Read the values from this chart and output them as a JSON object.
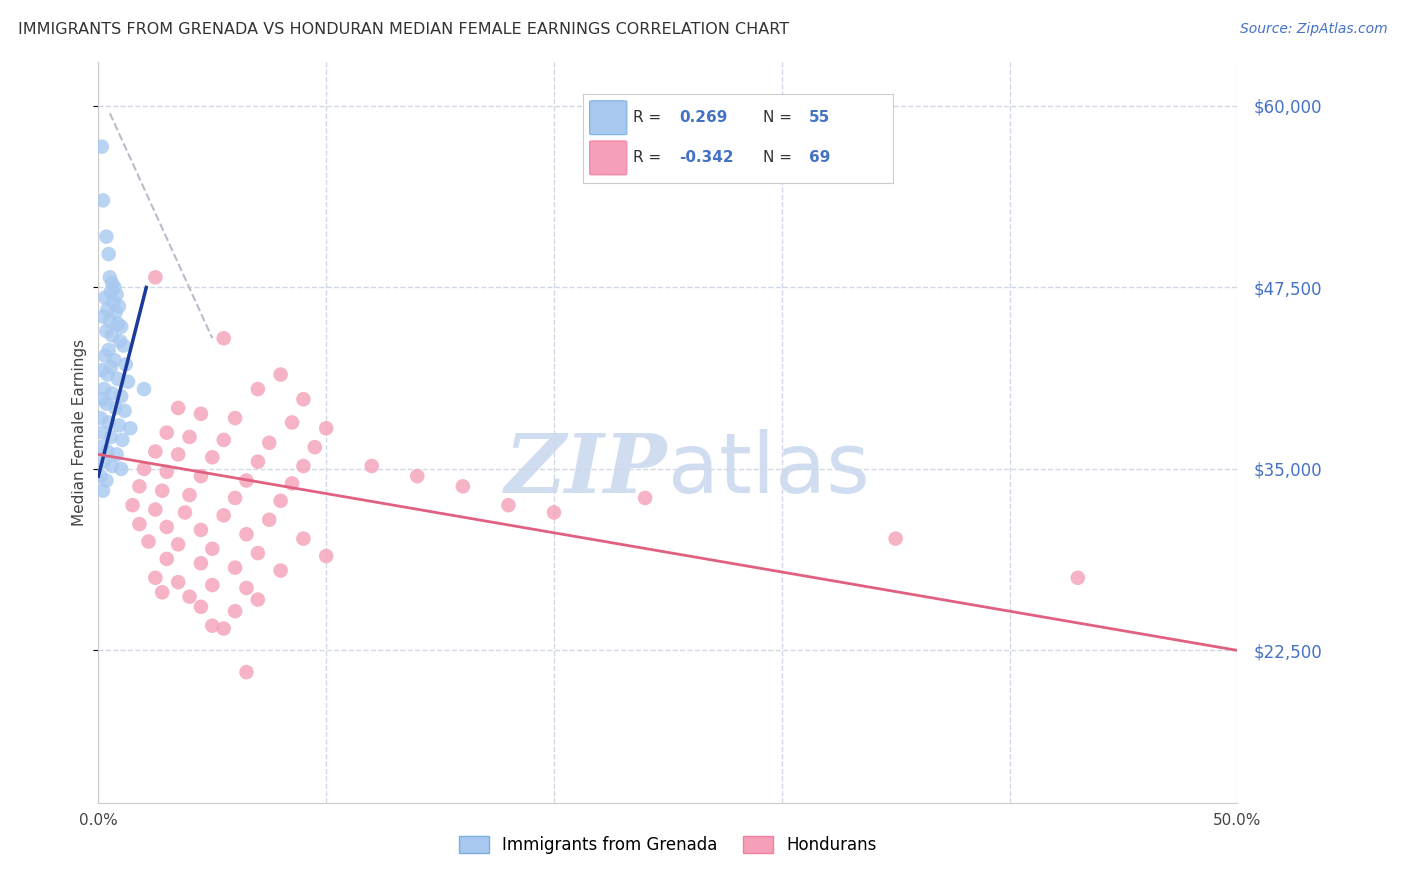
{
  "title": "IMMIGRANTS FROM GRENADA VS HONDURAN MEDIAN FEMALE EARNINGS CORRELATION CHART",
  "source": "Source: ZipAtlas.com",
  "ylabel": "Median Female Earnings",
  "y_ticks": [
    22500,
    35000,
    47500,
    60000
  ],
  "y_tick_labels": [
    "$22,500",
    "$35,000",
    "$47,500",
    "$60,000"
  ],
  "xmin": 0.0,
  "xmax": 50.0,
  "ymin": 12000,
  "ymax": 63000,
  "blue_color": "#a8c8f0",
  "blue_edge_color": "#7ab0e0",
  "pink_color": "#f5a0b8",
  "pink_edge_color": "#f080a0",
  "blue_line_color": "#1a3a9c",
  "pink_line_color": "#e06080",
  "grid_color": "#d0d8e8",
  "background_color": "#ffffff",
  "watermark_color": "#d0ddf0",
  "blue_dots": [
    [
      0.15,
      57200
    ],
    [
      0.2,
      53500
    ],
    [
      0.35,
      51000
    ],
    [
      0.45,
      49800
    ],
    [
      0.5,
      48200
    ],
    [
      0.6,
      47800
    ],
    [
      0.7,
      47500
    ],
    [
      0.55,
      47200
    ],
    [
      0.8,
      47000
    ],
    [
      0.3,
      46800
    ],
    [
      0.65,
      46500
    ],
    [
      0.9,
      46200
    ],
    [
      0.4,
      46000
    ],
    [
      0.75,
      45800
    ],
    [
      0.2,
      45500
    ],
    [
      0.5,
      45200
    ],
    [
      0.85,
      45000
    ],
    [
      1.0,
      44800
    ],
    [
      0.35,
      44500
    ],
    [
      0.6,
      44200
    ],
    [
      0.95,
      43800
    ],
    [
      1.1,
      43500
    ],
    [
      0.45,
      43200
    ],
    [
      0.3,
      42800
    ],
    [
      0.7,
      42500
    ],
    [
      1.2,
      42200
    ],
    [
      0.55,
      42000
    ],
    [
      0.15,
      41800
    ],
    [
      0.4,
      41500
    ],
    [
      0.85,
      41200
    ],
    [
      1.3,
      41000
    ],
    [
      0.25,
      40500
    ],
    [
      0.6,
      40200
    ],
    [
      1.0,
      40000
    ],
    [
      0.2,
      39800
    ],
    [
      0.35,
      39500
    ],
    [
      0.75,
      39200
    ],
    [
      1.15,
      39000
    ],
    [
      0.1,
      38500
    ],
    [
      0.45,
      38200
    ],
    [
      0.9,
      38000
    ],
    [
      1.4,
      37800
    ],
    [
      0.2,
      37500
    ],
    [
      0.55,
      37200
    ],
    [
      1.05,
      37000
    ],
    [
      0.15,
      36500
    ],
    [
      0.4,
      36200
    ],
    [
      0.8,
      36000
    ],
    [
      0.25,
      35500
    ],
    [
      0.6,
      35200
    ],
    [
      1.0,
      35000
    ],
    [
      0.1,
      34500
    ],
    [
      0.35,
      34200
    ],
    [
      0.2,
      33500
    ],
    [
      2.0,
      40500
    ]
  ],
  "pink_dots": [
    [
      2.5,
      48200
    ],
    [
      5.5,
      44000
    ],
    [
      8.0,
      41500
    ],
    [
      7.0,
      40500
    ],
    [
      9.0,
      39800
    ],
    [
      3.5,
      39200
    ],
    [
      4.5,
      38800
    ],
    [
      6.0,
      38500
    ],
    [
      8.5,
      38200
    ],
    [
      10.0,
      37800
    ],
    [
      3.0,
      37500
    ],
    [
      4.0,
      37200
    ],
    [
      5.5,
      37000
    ],
    [
      7.5,
      36800
    ],
    [
      9.5,
      36500
    ],
    [
      2.5,
      36200
    ],
    [
      3.5,
      36000
    ],
    [
      5.0,
      35800
    ],
    [
      7.0,
      35500
    ],
    [
      9.0,
      35200
    ],
    [
      2.0,
      35000
    ],
    [
      3.0,
      34800
    ],
    [
      4.5,
      34500
    ],
    [
      6.5,
      34200
    ],
    [
      8.5,
      34000
    ],
    [
      1.8,
      33800
    ],
    [
      2.8,
      33500
    ],
    [
      4.0,
      33200
    ],
    [
      6.0,
      33000
    ],
    [
      8.0,
      32800
    ],
    [
      1.5,
      32500
    ],
    [
      2.5,
      32200
    ],
    [
      3.8,
      32000
    ],
    [
      5.5,
      31800
    ],
    [
      7.5,
      31500
    ],
    [
      1.8,
      31200
    ],
    [
      3.0,
      31000
    ],
    [
      4.5,
      30800
    ],
    [
      6.5,
      30500
    ],
    [
      9.0,
      30200
    ],
    [
      2.2,
      30000
    ],
    [
      3.5,
      29800
    ],
    [
      5.0,
      29500
    ],
    [
      7.0,
      29200
    ],
    [
      10.0,
      29000
    ],
    [
      3.0,
      28800
    ],
    [
      4.5,
      28500
    ],
    [
      6.0,
      28200
    ],
    [
      8.0,
      28000
    ],
    [
      2.5,
      27500
    ],
    [
      3.5,
      27200
    ],
    [
      5.0,
      27000
    ],
    [
      6.5,
      26800
    ],
    [
      2.8,
      26500
    ],
    [
      4.0,
      26200
    ],
    [
      7.0,
      26000
    ],
    [
      4.5,
      25500
    ],
    [
      6.0,
      25200
    ],
    [
      5.0,
      24200
    ],
    [
      5.5,
      24000
    ],
    [
      6.5,
      21000
    ],
    [
      35.0,
      30200
    ],
    [
      43.0,
      27500
    ],
    [
      24.0,
      33000
    ],
    [
      20.0,
      32000
    ],
    [
      14.0,
      34500
    ],
    [
      16.0,
      33800
    ],
    [
      12.0,
      35200
    ],
    [
      18.0,
      32500
    ]
  ],
  "blue_trend_x": [
    0.0,
    2.1
  ],
  "blue_trend_y": [
    34500,
    47500
  ],
  "pink_trend_x": [
    0.0,
    50.0
  ],
  "pink_trend_y": [
    36000,
    22500
  ],
  "ref_line_x": [
    0.5,
    5.0
  ],
  "ref_line_y": [
    59500,
    44000
  ],
  "legend_r_blue": "0.269",
  "legend_n_blue": "55",
  "legend_r_pink": "-0.342",
  "legend_n_pink": "69"
}
